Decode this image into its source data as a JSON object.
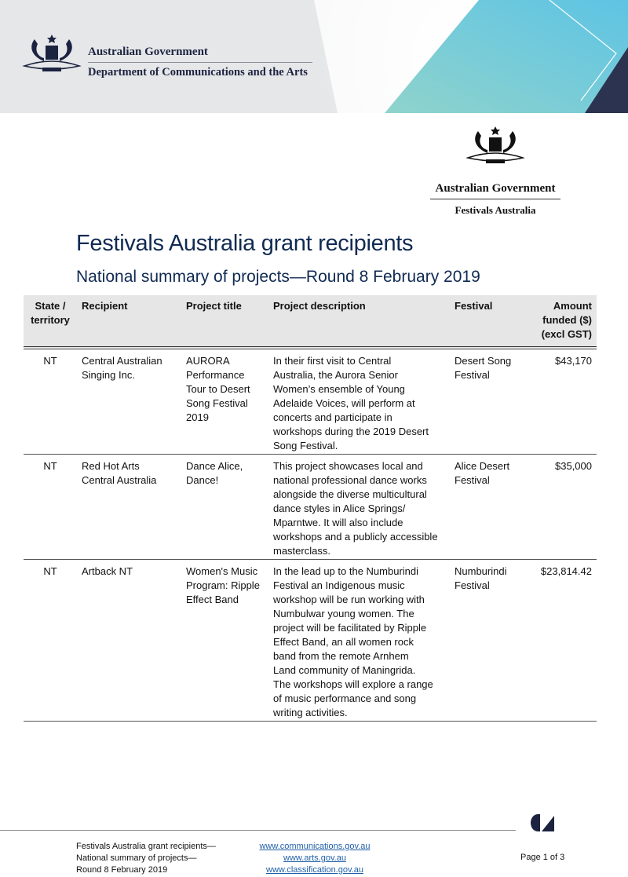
{
  "header": {
    "gov_name": "Australian Government",
    "department": "Department of Communications and the Arts"
  },
  "program_logo": {
    "gov_name": "Australian Government",
    "program": "Festivals Australia"
  },
  "title": "Festivals Australia grant recipients",
  "subtitle": "National summary of projects—Round 8 February 2019",
  "table": {
    "columns": [
      "State /\nterritory",
      "Recipient",
      "Project title",
      "Project description",
      "Festival",
      "Amount\nfunded ($)\n(excl GST)"
    ],
    "rows": [
      [
        "NT",
        "Central Australian\nSinging Inc.",
        "AURORA\nPerformance\nTour to Desert\nSong Festival\n2019",
        "In their first visit to Central\nAustralia, the Aurora Senior\nWomen’s ensemble of Young\nAdelaide Voices, will perform at\nconcerts and participate in\nworkshops during the 2019 Desert\nSong Festival.",
        "Desert Song\nFestival",
        "$43,170"
      ],
      [
        "NT",
        "Red Hot Arts\nCentral Australia",
        "Dance Alice,\nDance!",
        "This project showcases local and\nnational professional dance works\nalongside the diverse multicultural\ndance styles in Alice Springs/\nMparntwe. It will also include\nworkshops and a publicly accessible\nmasterclass.",
        "Alice Desert\nFestival",
        "$35,000"
      ],
      [
        "NT",
        "Artback NT",
        "Women's Music\nProgram: Ripple\nEffect Band",
        "In the lead up to the Numburindi\nFestival an Indigenous music\nworkshop will be run working with\nNumbulwar young women. The\nproject will be facilitated by Ripple\nEffect Band, an all women rock\nband from the remote Arnhem\nLand community of Maningrida.\nThe workshops will explore a range\nof music performance and song\nwriting activities.",
        "Numburindi\nFestival",
        "$23,814.42"
      ]
    ]
  },
  "footer": {
    "doc_title": "Festivals Australia grant recipients—\nNational summary of projects—\nRound 8 February 2019",
    "links": [
      "www.communications.gov.au",
      "www.arts.gov.au",
      "www.classification.gov.au"
    ],
    "page": "Page 1 of 3"
  },
  "colors": {
    "title": "#102a52",
    "header_bg": "#e6e6e6",
    "link": "#1f5fa8",
    "navy": "#2b3350",
    "teal": "#6ccbd8"
  }
}
